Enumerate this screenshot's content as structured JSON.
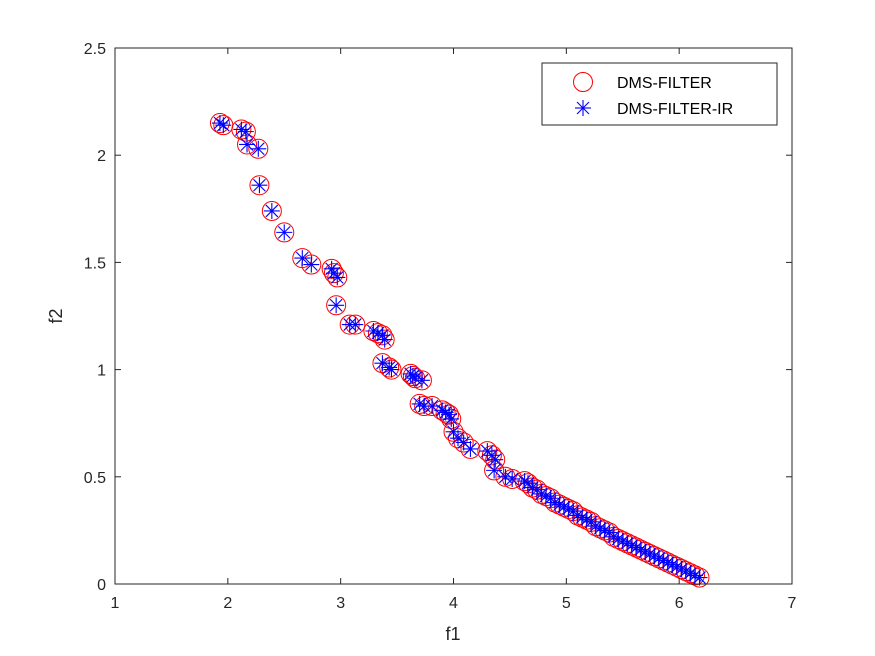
{
  "chart_data": {
    "type": "scatter",
    "title": "",
    "xlabel": "f1",
    "ylabel": "f2",
    "xlim": [
      1,
      7
    ],
    "ylim": [
      0,
      2.5
    ],
    "xticks": [
      1,
      2,
      3,
      4,
      5,
      6,
      7
    ],
    "yticks": [
      0,
      0.5,
      1,
      1.5,
      2,
      2.5
    ],
    "xtick_labels": [
      "1",
      "2",
      "3",
      "4",
      "5",
      "6",
      "7"
    ],
    "ytick_labels": [
      "0",
      "0.5",
      "1",
      "1.5",
      "2",
      "2.5"
    ],
    "grid": false,
    "legend_position": "top-right",
    "series": [
      {
        "name": "DMS-FILTER",
        "marker": "circle",
        "color": "#ff0000",
        "points": [
          [
            1.93,
            2.15
          ],
          [
            1.96,
            2.14
          ],
          [
            2.12,
            2.12
          ],
          [
            2.16,
            2.11
          ],
          [
            2.17,
            2.05
          ],
          [
            2.27,
            2.03
          ],
          [
            2.28,
            1.86
          ],
          [
            2.39,
            1.74
          ],
          [
            2.5,
            1.64
          ],
          [
            2.66,
            1.52
          ],
          [
            2.74,
            1.49
          ],
          [
            2.92,
            1.47
          ],
          [
            2.94,
            1.45
          ],
          [
            2.97,
            1.43
          ],
          [
            2.96,
            1.3
          ],
          [
            3.08,
            1.21
          ],
          [
            3.13,
            1.21
          ],
          [
            3.29,
            1.18
          ],
          [
            3.33,
            1.17
          ],
          [
            3.37,
            1.16
          ],
          [
            3.39,
            1.14
          ],
          [
            3.37,
            1.03
          ],
          [
            3.43,
            1.01
          ],
          [
            3.45,
            1.0
          ],
          [
            3.62,
            0.98
          ],
          [
            3.64,
            0.97
          ],
          [
            3.66,
            0.96
          ],
          [
            3.72,
            0.95
          ],
          [
            3.7,
            0.84
          ],
          [
            3.74,
            0.83
          ],
          [
            3.81,
            0.83
          ],
          [
            3.9,
            0.81
          ],
          [
            3.93,
            0.8
          ],
          [
            3.96,
            0.79
          ],
          [
            3.98,
            0.77
          ],
          [
            4.0,
            0.71
          ],
          [
            4.04,
            0.68
          ],
          [
            4.09,
            0.66
          ],
          [
            4.15,
            0.63
          ],
          [
            4.3,
            0.62
          ],
          [
            4.34,
            0.6
          ],
          [
            4.37,
            0.58
          ],
          [
            4.36,
            0.53
          ],
          [
            4.46,
            0.5
          ],
          [
            4.52,
            0.49
          ],
          [
            4.63,
            0.48
          ],
          [
            4.66,
            0.47
          ],
          [
            4.7,
            0.45
          ],
          [
            4.74,
            0.44
          ],
          [
            4.78,
            0.42
          ],
          [
            4.82,
            0.41
          ],
          [
            4.86,
            0.4
          ],
          [
            4.9,
            0.38
          ],
          [
            4.94,
            0.37
          ],
          [
            4.98,
            0.36
          ],
          [
            5.02,
            0.35
          ],
          [
            5.06,
            0.34
          ],
          [
            5.1,
            0.32
          ],
          [
            5.14,
            0.31
          ],
          [
            5.18,
            0.3
          ],
          [
            5.22,
            0.29
          ],
          [
            5.26,
            0.27
          ],
          [
            5.3,
            0.26
          ],
          [
            5.34,
            0.25
          ],
          [
            5.38,
            0.24
          ],
          [
            5.42,
            0.22
          ],
          [
            5.46,
            0.21
          ],
          [
            5.5,
            0.2
          ],
          [
            5.54,
            0.19
          ],
          [
            5.58,
            0.18
          ],
          [
            5.62,
            0.17
          ],
          [
            5.66,
            0.16
          ],
          [
            5.7,
            0.15
          ],
          [
            5.74,
            0.14
          ],
          [
            5.78,
            0.13
          ],
          [
            5.82,
            0.12
          ],
          [
            5.86,
            0.11
          ],
          [
            5.9,
            0.1
          ],
          [
            5.94,
            0.09
          ],
          [
            5.98,
            0.08
          ],
          [
            6.02,
            0.07
          ],
          [
            6.06,
            0.06
          ],
          [
            6.1,
            0.05
          ],
          [
            6.14,
            0.04
          ],
          [
            6.18,
            0.03
          ]
        ]
      },
      {
        "name": "DMS-FILTER-IR",
        "marker": "asterisk",
        "color": "#0000ff",
        "points": [
          [
            1.93,
            2.15
          ],
          [
            1.96,
            2.14
          ],
          [
            2.12,
            2.12
          ],
          [
            2.16,
            2.11
          ],
          [
            2.17,
            2.05
          ],
          [
            2.27,
            2.03
          ],
          [
            2.28,
            1.86
          ],
          [
            2.39,
            1.74
          ],
          [
            2.5,
            1.64
          ],
          [
            2.66,
            1.52
          ],
          [
            2.74,
            1.49
          ],
          [
            2.92,
            1.47
          ],
          [
            2.94,
            1.45
          ],
          [
            2.97,
            1.43
          ],
          [
            2.96,
            1.3
          ],
          [
            3.08,
            1.21
          ],
          [
            3.13,
            1.21
          ],
          [
            3.29,
            1.18
          ],
          [
            3.33,
            1.17
          ],
          [
            3.37,
            1.16
          ],
          [
            3.39,
            1.14
          ],
          [
            3.37,
            1.03
          ],
          [
            3.43,
            1.01
          ],
          [
            3.45,
            1.0
          ],
          [
            3.62,
            0.98
          ],
          [
            3.64,
            0.97
          ],
          [
            3.66,
            0.96
          ],
          [
            3.72,
            0.95
          ],
          [
            3.7,
            0.84
          ],
          [
            3.74,
            0.83
          ],
          [
            3.81,
            0.83
          ],
          [
            3.9,
            0.81
          ],
          [
            3.93,
            0.8
          ],
          [
            3.96,
            0.79
          ],
          [
            3.98,
            0.77
          ],
          [
            4.0,
            0.71
          ],
          [
            4.04,
            0.68
          ],
          [
            4.09,
            0.66
          ],
          [
            4.15,
            0.63
          ],
          [
            4.3,
            0.62
          ],
          [
            4.34,
            0.6
          ],
          [
            4.37,
            0.58
          ],
          [
            4.36,
            0.53
          ],
          [
            4.46,
            0.5
          ],
          [
            4.52,
            0.49
          ],
          [
            4.63,
            0.48
          ],
          [
            4.66,
            0.47
          ],
          [
            4.7,
            0.45
          ],
          [
            4.74,
            0.44
          ],
          [
            4.78,
            0.42
          ],
          [
            4.82,
            0.41
          ],
          [
            4.86,
            0.4
          ],
          [
            4.9,
            0.38
          ],
          [
            4.94,
            0.37
          ],
          [
            4.98,
            0.36
          ],
          [
            5.02,
            0.35
          ],
          [
            5.06,
            0.34
          ],
          [
            5.1,
            0.32
          ],
          [
            5.14,
            0.31
          ],
          [
            5.18,
            0.3
          ],
          [
            5.22,
            0.29
          ],
          [
            5.26,
            0.27
          ],
          [
            5.3,
            0.26
          ],
          [
            5.34,
            0.25
          ],
          [
            5.38,
            0.24
          ],
          [
            5.42,
            0.22
          ],
          [
            5.46,
            0.21
          ],
          [
            5.5,
            0.2
          ],
          [
            5.54,
            0.19
          ],
          [
            5.58,
            0.18
          ],
          [
            5.62,
            0.17
          ],
          [
            5.66,
            0.16
          ],
          [
            5.7,
            0.15
          ],
          [
            5.74,
            0.14
          ],
          [
            5.78,
            0.13
          ],
          [
            5.82,
            0.12
          ],
          [
            5.86,
            0.11
          ],
          [
            5.9,
            0.1
          ],
          [
            5.94,
            0.09
          ],
          [
            5.98,
            0.08
          ],
          [
            6.02,
            0.07
          ],
          [
            6.06,
            0.06
          ],
          [
            6.1,
            0.05
          ],
          [
            6.14,
            0.04
          ],
          [
            6.18,
            0.03
          ]
        ]
      }
    ]
  }
}
